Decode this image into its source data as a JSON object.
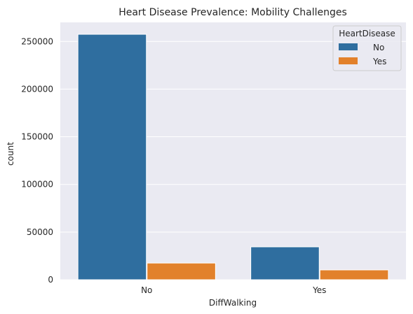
{
  "chart_data": {
    "type": "bar",
    "title": "Heart Disease Prevalence: Mobility Challenges",
    "xlabel": "DiffWalking",
    "ylabel": "count",
    "categories": [
      "No",
      "Yes"
    ],
    "series": [
      {
        "name": "No",
        "color": "#2f6e9f",
        "values": [
          257500,
          34500
        ]
      },
      {
        "name": "Yes",
        "color": "#e2812b",
        "values": [
          17500,
          10300
        ]
      }
    ],
    "ylim": [
      0,
      270000
    ],
    "yticks": [
      0,
      50000,
      100000,
      150000,
      200000,
      250000
    ],
    "grid": true,
    "legend": {
      "title": "HeartDisease",
      "position": "top-right"
    },
    "background": "#eaeaf2"
  }
}
